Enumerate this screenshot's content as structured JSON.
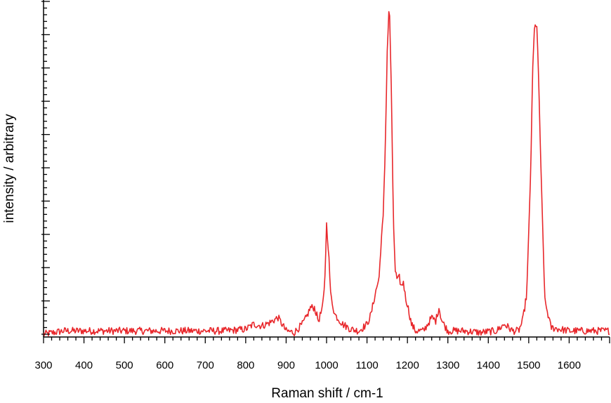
{
  "chart_data": {
    "type": "line",
    "title": "",
    "xlabel": "Raman shift / cm-1",
    "ylabel": "intensity / arbitrary",
    "xlim": [
      300,
      1700
    ],
    "ylim": [
      0,
      1.0
    ],
    "x_ticks": [
      300,
      400,
      500,
      600,
      700,
      800,
      900,
      1000,
      1100,
      1200,
      1300,
      1400,
      1500,
      1600
    ],
    "x_tick_labels": [
      "300",
      "400",
      "500",
      "600",
      "700",
      "800",
      "900",
      "1000",
      "1100",
      "1200",
      "1300",
      "1400",
      "1500",
      "1600"
    ],
    "y_tick_labels_shown": false,
    "grid": false,
    "legend": "none",
    "series": [
      {
        "color": "#e8272b",
        "x": [
          300,
          350,
          400,
          450,
          500,
          550,
          600,
          650,
          700,
          750,
          800,
          820,
          840,
          860,
          880,
          900,
          920,
          940,
          950,
          960,
          970,
          980,
          990,
          995,
          1000,
          1005,
          1010,
          1020,
          1040,
          1060,
          1080,
          1100,
          1110,
          1120,
          1130,
          1135,
          1140,
          1145,
          1150,
          1155,
          1160,
          1165,
          1170,
          1175,
          1180,
          1185,
          1190,
          1195,
          1200,
          1210,
          1220,
          1240,
          1260,
          1270,
          1278,
          1285,
          1300,
          1340,
          1380,
          1420,
          1440,
          1460,
          1475,
          1485,
          1495,
          1500,
          1505,
          1510,
          1515,
          1520,
          1525,
          1530,
          1540,
          1555,
          1600,
          1650,
          1700
        ],
        "y": [
          0.0,
          0.01,
          0.01,
          0.01,
          0.01,
          0.01,
          0.01,
          0.01,
          0.01,
          0.01,
          0.015,
          0.03,
          0.025,
          0.035,
          0.05,
          0.01,
          0.005,
          0.03,
          0.05,
          0.08,
          0.08,
          0.04,
          0.08,
          0.14,
          0.33,
          0.25,
          0.12,
          0.06,
          0.03,
          0.015,
          0.01,
          0.03,
          0.06,
          0.12,
          0.17,
          0.28,
          0.35,
          0.55,
          0.85,
          1.0,
          0.75,
          0.35,
          0.19,
          0.16,
          0.17,
          0.14,
          0.16,
          0.11,
          0.09,
          0.03,
          0.01,
          0.01,
          0.05,
          0.04,
          0.08,
          0.04,
          0.01,
          0.01,
          0.005,
          0.01,
          0.03,
          0.01,
          0.01,
          0.04,
          0.12,
          0.3,
          0.5,
          0.8,
          0.94,
          0.92,
          0.75,
          0.5,
          0.1,
          0.02,
          0.01,
          0.01,
          0.01
        ]
      }
    ]
  }
}
